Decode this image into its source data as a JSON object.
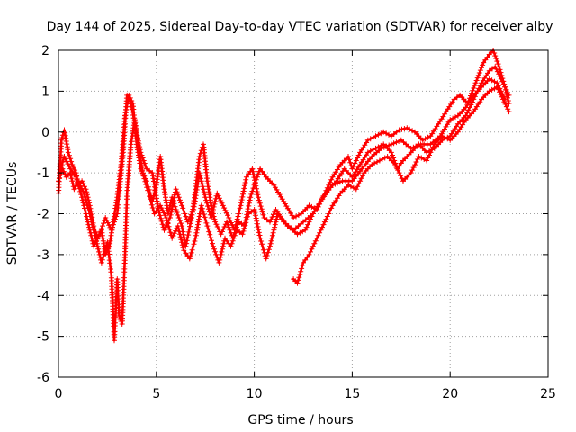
{
  "chart_data": {
    "type": "scatter",
    "title": "Day 144 of 2025, Sidereal Day-to-day VTEC variation (SDTVAR) for receiver alby",
    "xlabel": "GPS time / hours",
    "ylabel": "SDTVAR / TECUs",
    "xlim": [
      0,
      25
    ],
    "ylim": [
      -6,
      2
    ],
    "xticks": [
      0,
      5,
      10,
      15,
      20,
      25
    ],
    "yticks": [
      -6,
      -5,
      -4,
      -3,
      -2,
      -1,
      0,
      1,
      2
    ],
    "grid": true,
    "marker": "+",
    "colors": {
      "series": "#ff0000",
      "grid": "#a0a0a0",
      "axis": "#000000"
    },
    "series": [
      {
        "name": "track-a",
        "points": [
          [
            0.0,
            -1.5
          ],
          [
            0.15,
            -0.2
          ],
          [
            0.3,
            0.05
          ],
          [
            0.5,
            -0.5
          ],
          [
            0.7,
            -0.8
          ],
          [
            0.9,
            -1.0
          ],
          [
            1.0,
            -1.3
          ],
          [
            1.2,
            -1.2
          ],
          [
            1.4,
            -1.4
          ],
          [
            1.6,
            -1.8
          ],
          [
            1.8,
            -2.3
          ],
          [
            2.0,
            -2.6
          ],
          [
            2.2,
            -2.4
          ],
          [
            2.4,
            -3.0
          ],
          [
            2.6,
            -2.8
          ],
          [
            2.8,
            -2.2
          ],
          [
            3.0,
            -1.6
          ],
          [
            3.2,
            -0.8
          ],
          [
            3.4,
            0.4
          ],
          [
            3.6,
            0.9
          ],
          [
            3.8,
            0.7
          ],
          [
            4.0,
            -0.3
          ],
          [
            4.2,
            -0.9
          ],
          [
            4.5,
            -1.2
          ],
          [
            4.8,
            -1.7
          ],
          [
            5.0,
            -1.3
          ],
          [
            5.2,
            -0.6
          ],
          [
            5.4,
            -1.4
          ],
          [
            5.6,
            -2.0
          ],
          [
            5.8,
            -1.6
          ],
          [
            6.0,
            -1.9
          ],
          [
            6.3,
            -2.3
          ],
          [
            6.5,
            -2.8
          ],
          [
            6.8,
            -2.1
          ],
          [
            7.0,
            -1.4
          ],
          [
            7.2,
            -0.6
          ],
          [
            7.4,
            -0.3
          ],
          [
            7.6,
            -1.2
          ],
          [
            7.8,
            -1.8
          ],
          [
            8.0,
            -2.2
          ],
          [
            8.3,
            -2.5
          ],
          [
            8.6,
            -2.2
          ],
          [
            8.9,
            -2.6
          ],
          [
            9.2,
            -2.2
          ],
          [
            9.5,
            -2.3
          ],
          [
            9.8,
            -1.6
          ],
          [
            10.0,
            -1.3
          ],
          [
            10.3,
            -0.9
          ],
          [
            10.6,
            -1.1
          ],
          [
            11.0,
            -1.3
          ],
          [
            11.5,
            -1.7
          ],
          [
            12.0,
            -2.1
          ],
          [
            12.4,
            -2.0
          ],
          [
            12.8,
            -1.8
          ],
          [
            13.2,
            -1.9
          ],
          [
            13.6,
            -1.5
          ],
          [
            14.0,
            -1.1
          ],
          [
            14.4,
            -0.8
          ],
          [
            14.8,
            -0.6
          ],
          [
            15.0,
            -0.9
          ],
          [
            15.4,
            -0.5
          ],
          [
            15.8,
            -0.2
          ],
          [
            16.2,
            -0.1
          ],
          [
            16.6,
            0.0
          ],
          [
            17.0,
            -0.1
          ],
          [
            17.4,
            0.05
          ],
          [
            17.8,
            0.1
          ],
          [
            18.2,
            0.0
          ],
          [
            18.6,
            -0.2
          ],
          [
            19.0,
            -0.1
          ],
          [
            19.4,
            0.2
          ],
          [
            19.8,
            0.5
          ],
          [
            20.2,
            0.8
          ],
          [
            20.5,
            0.9
          ],
          [
            20.9,
            0.7
          ],
          [
            21.3,
            1.2
          ],
          [
            21.7,
            1.7
          ],
          [
            22.0,
            1.9
          ],
          [
            22.2,
            2.0
          ],
          [
            22.5,
            1.6
          ],
          [
            22.8,
            1.1
          ],
          [
            23.0,
            0.7
          ]
        ]
      },
      {
        "name": "track-b",
        "points": [
          [
            0.0,
            -1.2
          ],
          [
            0.2,
            -0.9
          ],
          [
            0.4,
            -1.1
          ],
          [
            0.6,
            -1.0
          ],
          [
            0.8,
            -1.4
          ],
          [
            1.0,
            -1.2
          ],
          [
            1.3,
            -1.5
          ],
          [
            1.6,
            -2.0
          ],
          [
            1.9,
            -2.6
          ],
          [
            2.2,
            -3.2
          ],
          [
            2.5,
            -2.7
          ],
          [
            2.7,
            -3.5
          ],
          [
            2.85,
            -5.1
          ],
          [
            3.0,
            -3.6
          ],
          [
            3.1,
            -4.5
          ],
          [
            3.25,
            -4.7
          ],
          [
            3.4,
            -3.0
          ],
          [
            3.5,
            -1.5
          ],
          [
            3.7,
            -0.3
          ],
          [
            3.9,
            0.3
          ],
          [
            4.1,
            -0.4
          ],
          [
            4.3,
            -1.0
          ],
          [
            4.6,
            -1.5
          ],
          [
            4.9,
            -2.0
          ],
          [
            5.2,
            -1.8
          ],
          [
            5.5,
            -2.1
          ],
          [
            5.8,
            -2.6
          ],
          [
            6.1,
            -2.3
          ],
          [
            6.4,
            -2.9
          ],
          [
            6.7,
            -3.1
          ],
          [
            7.0,
            -2.6
          ],
          [
            7.3,
            -1.8
          ],
          [
            7.6,
            -2.3
          ],
          [
            7.9,
            -2.8
          ],
          [
            8.2,
            -3.2
          ],
          [
            8.5,
            -2.6
          ],
          [
            8.8,
            -2.8
          ],
          [
            9.1,
            -2.4
          ],
          [
            9.4,
            -2.5
          ],
          [
            9.7,
            -2.0
          ],
          [
            10.0,
            -1.9
          ],
          [
            10.3,
            -2.6
          ],
          [
            10.6,
            -3.1
          ],
          [
            10.8,
            -2.8
          ],
          [
            11.2,
            -2.0
          ],
          [
            11.7,
            -2.3
          ],
          [
            12.2,
            -2.5
          ],
          [
            12.6,
            -2.4
          ],
          [
            13.0,
            -2.0
          ],
          [
            13.4,
            -1.7
          ],
          [
            13.8,
            -1.4
          ],
          [
            14.2,
            -1.2
          ],
          [
            14.6,
            -0.9
          ],
          [
            15.0,
            -1.1
          ],
          [
            15.4,
            -0.8
          ],
          [
            15.8,
            -0.5
          ],
          [
            16.2,
            -0.4
          ],
          [
            16.6,
            -0.3
          ],
          [
            17.0,
            -0.5
          ],
          [
            17.3,
            -0.9
          ],
          [
            17.6,
            -0.7
          ],
          [
            18.0,
            -0.5
          ],
          [
            18.4,
            -0.3
          ],
          [
            18.8,
            -0.5
          ],
          [
            19.2,
            -0.4
          ],
          [
            19.6,
            -0.2
          ],
          [
            20.0,
            -0.1
          ],
          [
            20.4,
            0.2
          ],
          [
            20.8,
            0.4
          ],
          [
            21.2,
            0.8
          ],
          [
            21.6,
            1.2
          ],
          [
            22.0,
            1.5
          ],
          [
            22.3,
            1.6
          ],
          [
            22.6,
            1.3
          ],
          [
            23.0,
            0.9
          ]
        ]
      },
      {
        "name": "track-c",
        "points": [
          [
            12.0,
            -3.6
          ],
          [
            12.2,
            -3.7
          ],
          [
            12.5,
            -3.2
          ],
          [
            12.8,
            -3.0
          ],
          [
            13.2,
            -2.6
          ],
          [
            13.6,
            -2.2
          ],
          [
            14.0,
            -1.8
          ],
          [
            14.4,
            -1.5
          ],
          [
            14.8,
            -1.3
          ],
          [
            15.2,
            -1.4
          ],
          [
            15.6,
            -1.0
          ],
          [
            16.0,
            -0.8
          ],
          [
            16.4,
            -0.7
          ],
          [
            16.8,
            -0.6
          ],
          [
            17.2,
            -0.8
          ],
          [
            17.6,
            -1.2
          ],
          [
            18.0,
            -1.0
          ],
          [
            18.4,
            -0.6
          ],
          [
            18.8,
            -0.7
          ],
          [
            19.2,
            -0.3
          ],
          [
            19.6,
            -0.1
          ],
          [
            20.0,
            -0.2
          ],
          [
            20.4,
            0.0
          ],
          [
            20.8,
            0.3
          ],
          [
            21.2,
            0.5
          ],
          [
            21.6,
            0.8
          ],
          [
            22.0,
            1.0
          ],
          [
            22.4,
            1.1
          ],
          [
            22.7,
            0.8
          ],
          [
            23.0,
            0.5
          ]
        ]
      },
      {
        "name": "track-d",
        "points": [
          [
            0.05,
            -1.0
          ],
          [
            0.3,
            -0.6
          ],
          [
            0.6,
            -0.9
          ],
          [
            0.9,
            -1.1
          ],
          [
            1.2,
            -1.6
          ],
          [
            1.5,
            -2.2
          ],
          [
            1.8,
            -2.8
          ],
          [
            2.1,
            -2.5
          ],
          [
            2.4,
            -2.1
          ],
          [
            2.7,
            -2.4
          ],
          [
            3.0,
            -2.0
          ],
          [
            3.3,
            -0.5
          ],
          [
            3.5,
            0.9
          ],
          [
            3.7,
            0.7
          ],
          [
            3.9,
            0.2
          ],
          [
            4.2,
            -0.5
          ],
          [
            4.5,
            -0.9
          ],
          [
            4.8,
            -1.0
          ],
          [
            5.1,
            -1.9
          ],
          [
            5.4,
            -2.4
          ],
          [
            5.7,
            -2.1
          ],
          [
            6.0,
            -1.4
          ],
          [
            6.3,
            -1.8
          ],
          [
            6.6,
            -2.2
          ],
          [
            6.9,
            -1.9
          ],
          [
            7.2,
            -1.0
          ],
          [
            7.5,
            -1.6
          ],
          [
            7.8,
            -2.1
          ],
          [
            8.1,
            -1.5
          ],
          [
            8.4,
            -1.8
          ],
          [
            8.7,
            -2.1
          ],
          [
            9.0,
            -2.4
          ],
          [
            9.3,
            -1.8
          ],
          [
            9.6,
            -1.1
          ],
          [
            9.9,
            -0.9
          ],
          [
            10.2,
            -1.6
          ],
          [
            10.5,
            -2.1
          ],
          [
            10.8,
            -2.2
          ],
          [
            11.1,
            -1.9
          ],
          [
            11.5,
            -2.2
          ],
          [
            12.0,
            -2.4
          ],
          [
            12.5,
            -2.2
          ],
          [
            13.0,
            -2.0
          ],
          [
            13.5,
            -1.6
          ],
          [
            14.0,
            -1.3
          ],
          [
            14.5,
            -1.2
          ],
          [
            15.0,
            -1.2
          ],
          [
            15.5,
            -0.9
          ],
          [
            16.0,
            -0.6
          ],
          [
            16.5,
            -0.4
          ],
          [
            17.0,
            -0.3
          ],
          [
            17.5,
            -0.2
          ],
          [
            18.0,
            -0.4
          ],
          [
            18.5,
            -0.3
          ],
          [
            19.0,
            -0.3
          ],
          [
            19.5,
            -0.1
          ],
          [
            20.0,
            0.3
          ],
          [
            20.4,
            0.4
          ],
          [
            20.8,
            0.6
          ],
          [
            21.2,
            0.9
          ],
          [
            21.6,
            1.1
          ],
          [
            22.0,
            1.3
          ],
          [
            22.4,
            1.2
          ],
          [
            22.8,
            0.8
          ]
        ]
      }
    ]
  }
}
